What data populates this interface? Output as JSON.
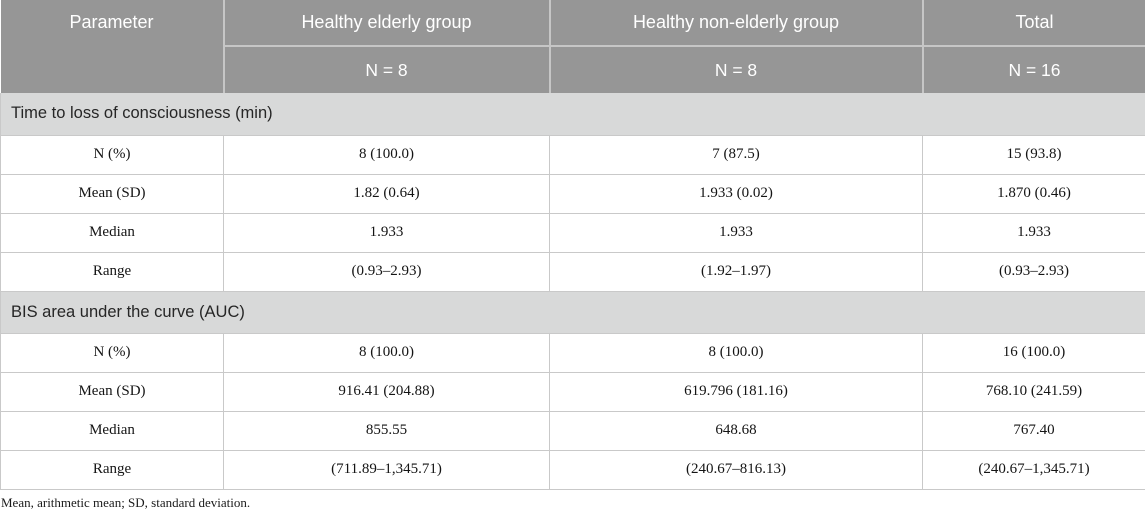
{
  "table": {
    "columns": {
      "parameter": "Parameter",
      "groups": [
        {
          "label": "Healthy elderly group",
          "n": "N = 8"
        },
        {
          "label": "Healthy non-elderly group",
          "n": "N = 8"
        },
        {
          "label": "Total",
          "n": "N = 16"
        }
      ]
    },
    "sections": [
      {
        "title": "Time to loss of consciousness (min)",
        "rows": [
          {
            "label": "N (%)",
            "values": [
              "8 (100.0)",
              "7 (87.5)",
              "15 (93.8)"
            ]
          },
          {
            "label": "Mean (SD)",
            "values": [
              "1.82 (0.64)",
              "1.933 (0.02)",
              "1.870 (0.46)"
            ]
          },
          {
            "label": "Median",
            "values": [
              "1.933",
              "1.933",
              "1.933"
            ]
          },
          {
            "label": "Range",
            "values": [
              "(0.93–2.93)",
              "(1.92–1.97)",
              "(0.93–2.93)"
            ]
          }
        ]
      },
      {
        "title": "BIS area under the curve (AUC)",
        "rows": [
          {
            "label": "N (%)",
            "values": [
              "8 (100.0)",
              "8 (100.0)",
              "16 (100.0)"
            ]
          },
          {
            "label": "Mean (SD)",
            "values": [
              "916.41 (204.88)",
              "619.796 (181.16)",
              "768.10 (241.59)"
            ]
          },
          {
            "label": "Median",
            "values": [
              "855.55",
              "648.68",
              "767.40"
            ]
          },
          {
            "label": "Range",
            "values": [
              "(711.89–1,345.71)",
              "(240.67–816.13)",
              "(240.67–1,345.71)"
            ]
          }
        ]
      }
    ],
    "footnote": "Mean, arithmetic mean; SD, standard deviation.",
    "colors": {
      "header_bg": "#969696",
      "header_text": "#ffffff",
      "header_sep": "#c6c6c6",
      "section_bg": "#d8d9d9",
      "body_border": "#c9c9c9"
    }
  }
}
